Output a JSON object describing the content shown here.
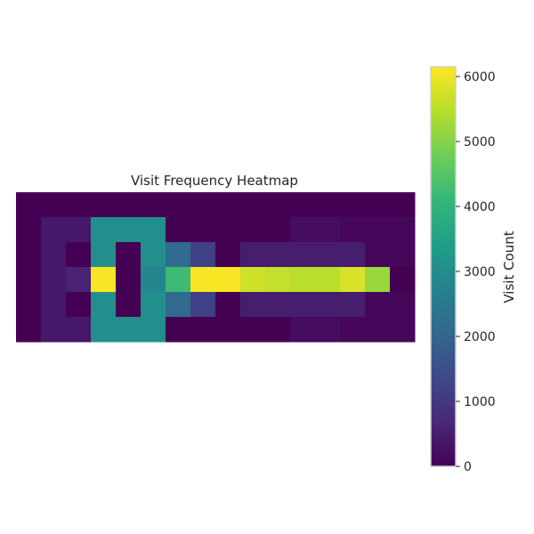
{
  "chart_data": {
    "type": "heatmap",
    "title": "Visit Frequency Heatmap",
    "xlabel": "",
    "ylabel": "",
    "colormap": "viridis",
    "grid": false,
    "colorbar": {
      "label": "Visit Count",
      "range": [
        0,
        6150
      ],
      "ticks": [
        0,
        1000,
        2000,
        3000,
        4000,
        5000,
        6000
      ],
      "position": "right"
    },
    "rows": 6,
    "cols": 16,
    "values": [
      [
        0,
        0,
        0,
        0,
        0,
        0,
        0,
        0,
        0,
        0,
        0,
        0,
        0,
        0,
        0,
        0
      ],
      [
        0,
        400,
        400,
        3050,
        3050,
        3050,
        0,
        0,
        0,
        0,
        0,
        200,
        200,
        100,
        100,
        100
      ],
      [
        0,
        400,
        0,
        3050,
        0,
        3050,
        2100,
        1200,
        0,
        500,
        500,
        500,
        500,
        500,
        100,
        100
      ],
      [
        0,
        400,
        600,
        6100,
        0,
        2800,
        4200,
        6100,
        6100,
        5700,
        5600,
        5500,
        5500,
        5800,
        5200,
        0
      ],
      [
        0,
        400,
        0,
        3050,
        0,
        3050,
        2100,
        1200,
        0,
        500,
        500,
        500,
        500,
        500,
        100,
        100
      ],
      [
        0,
        400,
        400,
        3050,
        3050,
        3050,
        0,
        0,
        0,
        0,
        0,
        200,
        200,
        100,
        100,
        100
      ]
    ]
  }
}
